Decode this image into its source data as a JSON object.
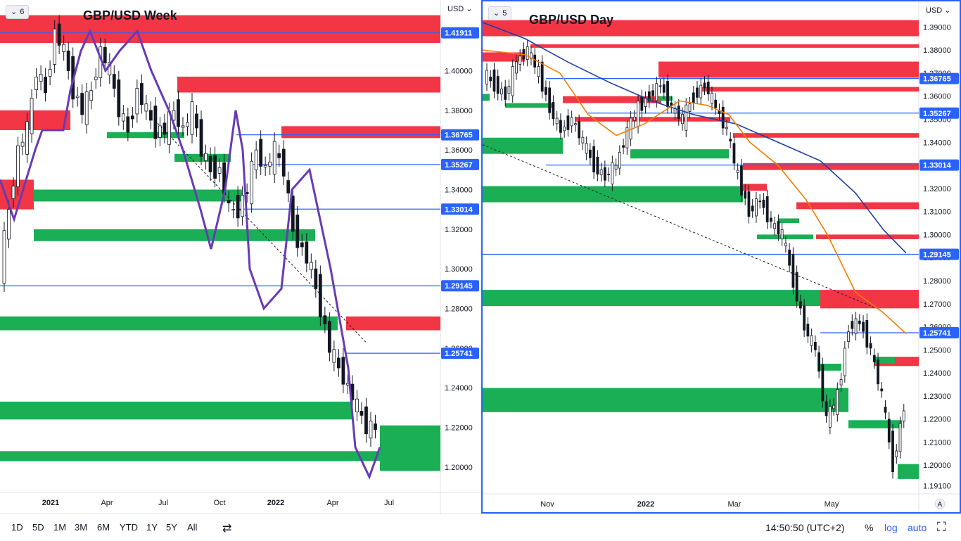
{
  "left_chart": {
    "badge": "6",
    "title": "GBP/USD Week",
    "currency": "USD",
    "y_ticks": [
      "1.40000",
      "1.38000",
      "1.36000",
      "1.34000",
      "1.32000",
      "1.30000",
      "1.28000",
      "1.26000",
      "1.24000",
      "1.22000",
      "1.20000"
    ],
    "x_ticks": [
      "2021",
      "Apr",
      "Jul",
      "Oct",
      "2022",
      "Apr",
      "Jul"
    ],
    "price_labels": [
      "1.41911",
      "1.36765",
      "1.35267",
      "1.33014",
      "1.29145",
      "1.25741"
    ]
  },
  "right_chart": {
    "badge": "5",
    "title": "GBP/USD Day",
    "currency": "USD",
    "y_ticks": [
      "1.39000",
      "1.38000",
      "1.37000",
      "1.36000",
      "1.35000",
      "1.34000",
      "1.33000",
      "1.32000",
      "1.31000",
      "1.30000",
      "1.29000",
      "1.28000",
      "1.27000",
      "1.26000",
      "1.25000",
      "1.24000",
      "1.23000",
      "1.22000",
      "1.21000",
      "1.20000",
      "1.19100"
    ],
    "x_ticks": [
      "Nov",
      "2022",
      "Mar",
      "May"
    ],
    "price_labels": [
      "1.36765",
      "1.35267",
      "1.33014",
      "1.29145",
      "1.25741"
    ],
    "auto_icon": "A"
  },
  "toolbar": {
    "timeframes": [
      "1D",
      "5D",
      "1M",
      "3M",
      "6M",
      "YTD",
      "1Y",
      "5Y",
      "All"
    ],
    "time": "14:50:50 (UTC+2)",
    "percent": "%",
    "log": "log",
    "auto": "auto"
  },
  "colors": {
    "supply": "#f23645",
    "demand": "#1aaf54",
    "level": "#2962ff",
    "candle": "#131722",
    "cloud": "#673ab7"
  },
  "chart_data": [
    {
      "type": "candlestick",
      "title": "GBP/USD Week",
      "ylim": [
        1.19,
        1.43
      ],
      "x": [
        "2021",
        "Apr",
        "Jul",
        "Oct",
        "2022",
        "Apr",
        "Jul"
      ],
      "horizontal_levels": [
        1.41911,
        1.36765,
        1.35267,
        1.33014,
        1.29145,
        1.25741
      ],
      "close_path": [
        1.3,
        1.33,
        1.36,
        1.37,
        1.4,
        1.39,
        1.42,
        1.41,
        1.39,
        1.38,
        1.39,
        1.41,
        1.4,
        1.38,
        1.37,
        1.39,
        1.38,
        1.37,
        1.37,
        1.38,
        1.37,
        1.38,
        1.36,
        1.35,
        1.35,
        1.33,
        1.33,
        1.34,
        1.36,
        1.35,
        1.36,
        1.35,
        1.32,
        1.31,
        1.3,
        1.28,
        1.26,
        1.25,
        1.24,
        1.23,
        1.22,
        1.22
      ]
    },
    {
      "type": "candlestick",
      "title": "GBP/USD Day",
      "ylim": [
        1.19,
        1.395
      ],
      "x": [
        "Nov",
        "2022",
        "Mar",
        "May"
      ],
      "horizontal_levels": [
        1.36765,
        1.35267,
        1.33014,
        1.29145,
        1.25741
      ],
      "close_path": [
        1.37,
        1.365,
        1.36,
        1.375,
        1.38,
        1.37,
        1.355,
        1.345,
        1.35,
        1.34,
        1.33,
        1.325,
        1.33,
        1.345,
        1.355,
        1.36,
        1.365,
        1.355,
        1.35,
        1.36,
        1.365,
        1.355,
        1.345,
        1.325,
        1.31,
        1.315,
        1.305,
        1.3,
        1.28,
        1.26,
        1.25,
        1.22,
        1.23,
        1.26,
        1.262,
        1.25,
        1.23,
        1.2,
        1.225
      ]
    }
  ]
}
